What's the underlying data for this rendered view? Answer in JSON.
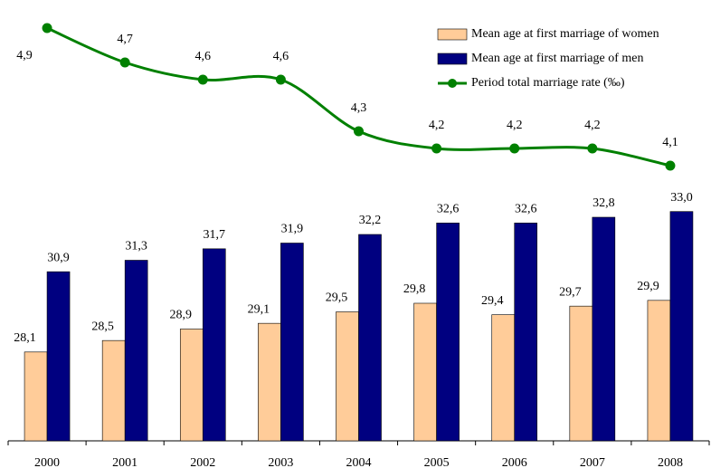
{
  "chart_data": {
    "type": "bar-line",
    "categories": [
      "2000",
      "2001",
      "2002",
      "2003",
      "2004",
      "2005",
      "2006",
      "2007",
      "2008"
    ],
    "series": [
      {
        "name": "Mean age at first marriage of women",
        "color": "#FFCC99",
        "type": "bar",
        "values": [
          28.1,
          28.5,
          28.9,
          29.1,
          29.5,
          29.8,
          29.4,
          29.7,
          29.9
        ],
        "value_labels": [
          "28,1",
          "28,5",
          "28,9",
          "29,1",
          "29,5",
          "29,8",
          "29,4",
          "29,7",
          "29,9"
        ]
      },
      {
        "name": "Mean age at first marriage of men",
        "color": "#000080",
        "type": "bar",
        "values": [
          30.9,
          31.3,
          31.7,
          31.9,
          32.2,
          32.6,
          32.6,
          32.8,
          33.0
        ],
        "value_labels": [
          "30,9",
          "31,3",
          "31,7",
          "31,9",
          "32,2",
          "32,6",
          "32,6",
          "32,8",
          "33,0"
        ]
      },
      {
        "name": "Period total marriage rate (‰)",
        "color": "#008000",
        "type": "line",
        "axis": "y2",
        "values": [
          4.9,
          4.7,
          4.6,
          4.6,
          4.3,
          4.2,
          4.2,
          4.2,
          4.1
        ],
        "value_labels": [
          "4,9",
          "4,7",
          "4,6",
          "4,6",
          "4,3",
          "4,2",
          "4,2",
          "4,2",
          "4,1"
        ]
      }
    ],
    "ylim": [
      25,
      40
    ],
    "y2lim": [
      2.5,
      5
    ],
    "legend": "top-right"
  }
}
